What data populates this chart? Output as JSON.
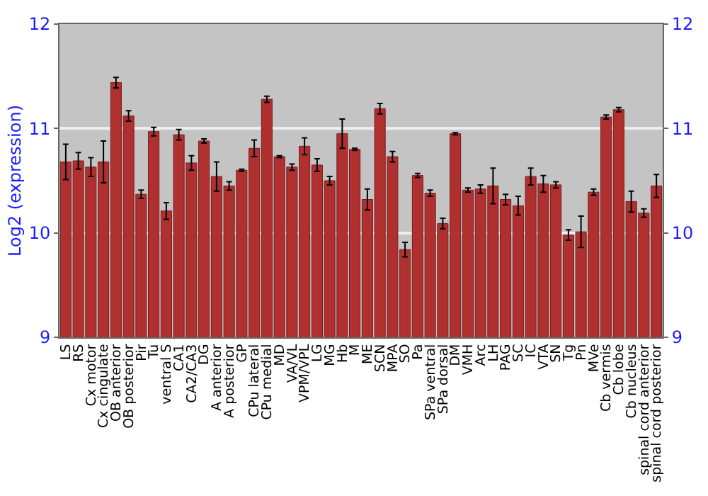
{
  "chart_data": {
    "type": "bar",
    "ylabel": "Log2 (expression)",
    "categories": [
      "LS",
      "RS",
      "Cx motor",
      "Cx cingulate",
      "OB anterior",
      "OB posterior",
      "Pir",
      "Tu",
      "ventral S",
      "CA1",
      "CA2/CA3",
      "DG",
      "A anterior",
      "A posterior",
      "GP",
      "CPu lateral",
      "CPu medial",
      "MD",
      "VA/VL",
      "VPM/VPL",
      "LG",
      "MG",
      "Hb",
      "M",
      "ME",
      "SCN",
      "MPA",
      "SO",
      "Pa",
      "SPa ventral",
      "SPa dorsal",
      "DM",
      "VMH",
      "Arc",
      "LH",
      "PAG",
      "SC",
      "IC",
      "VTA",
      "SN",
      "Tg",
      "Pn",
      "MVe",
      "Cb vermis",
      "Cb lobe",
      "Cb nucleus",
      "spinal cord anterior",
      "spinal cord posterior"
    ],
    "values": [
      10.68,
      10.69,
      10.63,
      10.68,
      11.44,
      11.12,
      10.37,
      10.97,
      10.21,
      10.94,
      10.67,
      10.88,
      10.54,
      10.45,
      10.6,
      10.81,
      11.28,
      10.73,
      10.63,
      10.83,
      10.65,
      10.5,
      10.95,
      10.8,
      10.32,
      11.19,
      10.73,
      9.84,
      10.55,
      10.38,
      10.09,
      10.95,
      10.41,
      10.42,
      10.45,
      10.32,
      10.26,
      10.54,
      10.47,
      10.46,
      9.98,
      10.01,
      10.39,
      11.11,
      11.18,
      10.3,
      10.19,
      10.45
    ],
    "errors": [
      0.17,
      0.08,
      0.09,
      0.2,
      0.05,
      0.05,
      0.04,
      0.04,
      0.08,
      0.05,
      0.07,
      0.02,
      0.14,
      0.04,
      0.01,
      0.08,
      0.03,
      0.01,
      0.03,
      0.08,
      0.06,
      0.04,
      0.14,
      0.01,
      0.1,
      0.05,
      0.05,
      0.07,
      0.02,
      0.03,
      0.05,
      0.01,
      0.02,
      0.04,
      0.17,
      0.05,
      0.09,
      0.08,
      0.08,
      0.03,
      0.05,
      0.15,
      0.03,
      0.02,
      0.02,
      0.1,
      0.04,
      0.11
    ],
    "color": "#b03030",
    "ylim": [
      9,
      12
    ],
    "yticks": [
      9,
      10,
      11,
      12
    ],
    "y2lim": [
      9,
      12
    ],
    "y2ticks": [
      9,
      10,
      11,
      12
    ],
    "grid": "y",
    "legend": false
  }
}
